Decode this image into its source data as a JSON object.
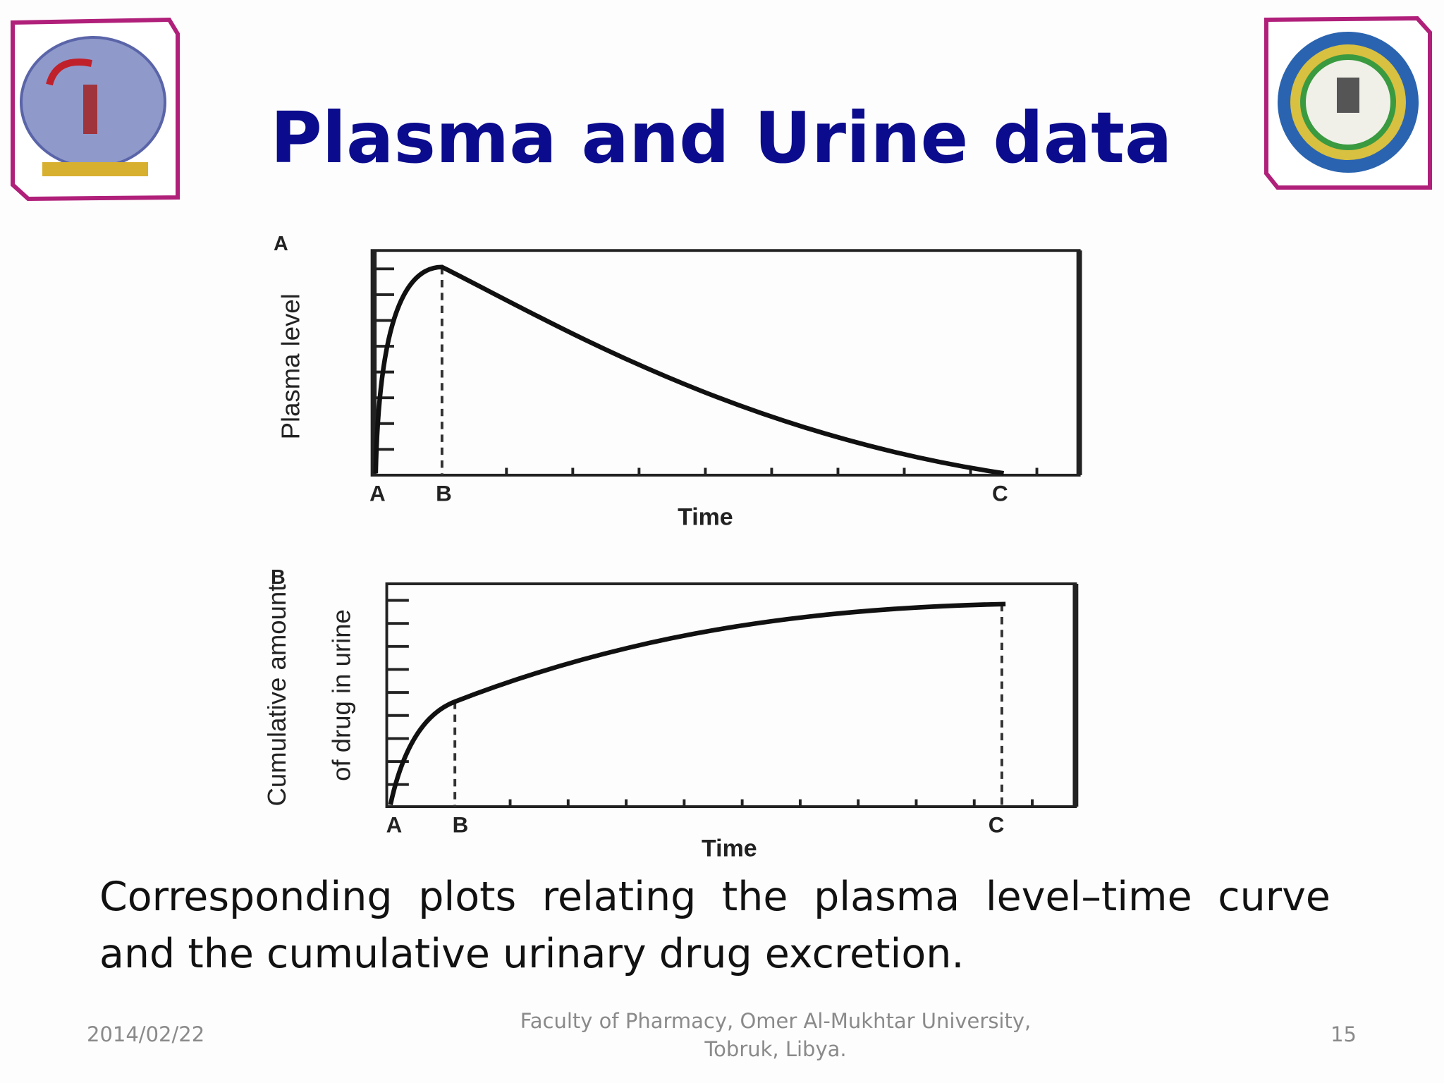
{
  "header": {
    "title": "Plasma and Urine data"
  },
  "figures": [
    {
      "panel": "A",
      "y_label": "Plasma level",
      "x_label": "Time",
      "x_marks": [
        "A",
        "B",
        "C"
      ]
    },
    {
      "panel": "B",
      "y_label_lines": [
        "Cumulative amount",
        "of drug in urine"
      ],
      "x_label": "Time",
      "x_marks": [
        "A",
        "B",
        "C"
      ]
    }
  ],
  "caption": "Corresponding plots relating the plasma level–time curve and the cumulative urinary drug excretion.",
  "footer": {
    "date": "2014/02/22",
    "source_lines": [
      "Faculty of Pharmacy, Omer Al-Mukhtar University,",
      "Tobruk, Libya."
    ],
    "page": "15"
  }
}
